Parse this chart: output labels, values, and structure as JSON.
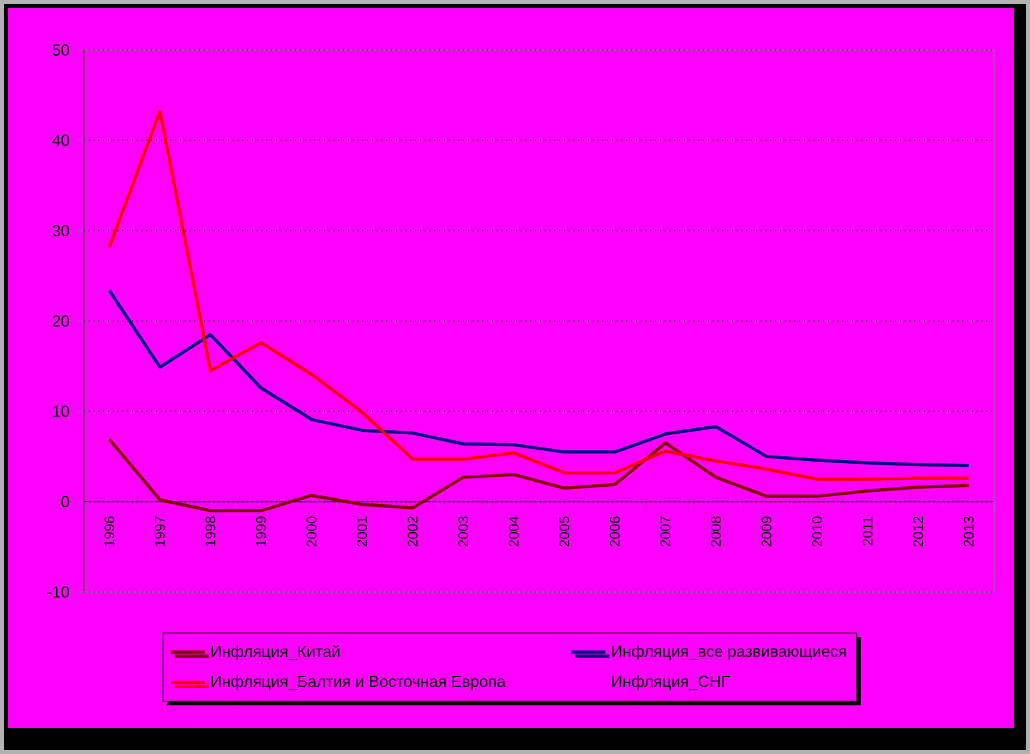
{
  "chart_data": {
    "type": "line",
    "categories": [
      "1996",
      "1997",
      "1998",
      "1999",
      "2000",
      "2001",
      "2002",
      "2003",
      "2004",
      "2005",
      "2006",
      "2007",
      "2008",
      "2009",
      "2010",
      "2011",
      "2012",
      "2013"
    ],
    "series": [
      {
        "name": "Инфляция_Китай",
        "color": "#800000",
        "values": [
          6.9,
          0.2,
          -1.0,
          -1.0,
          0.7,
          -0.3,
          -0.7,
          2.7,
          3.0,
          1.5,
          1.9,
          6.5,
          2.7,
          0.6,
          0.6,
          1.2,
          1.6,
          1.8
        ]
      },
      {
        "name": "Инфляция_все развивающиеся",
        "color": "#000080",
        "values": [
          23.4,
          14.9,
          18.5,
          12.6,
          9.1,
          7.9,
          7.6,
          6.4,
          6.3,
          5.5,
          5.5,
          7.5,
          8.3,
          5.0,
          4.6,
          4.3,
          4.1,
          4.0
        ]
      },
      {
        "name": "Инфляция_Балтия и Восточная Европа",
        "color": "#ff0000",
        "values": [
          28.2,
          43.2,
          14.5,
          17.6,
          14.1,
          9.9,
          4.7,
          4.7,
          5.4,
          3.2,
          3.2,
          5.6,
          4.5,
          3.6,
          2.5,
          2.5,
          2.6,
          2.6
        ]
      },
      {
        "name": "Инфляция_СНГ",
        "values": [
          null,
          null,
          null,
          null,
          null,
          null,
          null,
          null,
          null,
          null,
          null,
          null,
          null,
          null,
          null,
          null,
          null,
          null
        ]
      }
    ],
    "ylim": [
      -10,
      50
    ],
    "yticks": [
      -10,
      0,
      10,
      20,
      30,
      40,
      50
    ],
    "grid": "y",
    "legend": "bottom",
    "line_style": "solid",
    "marker": "none"
  }
}
